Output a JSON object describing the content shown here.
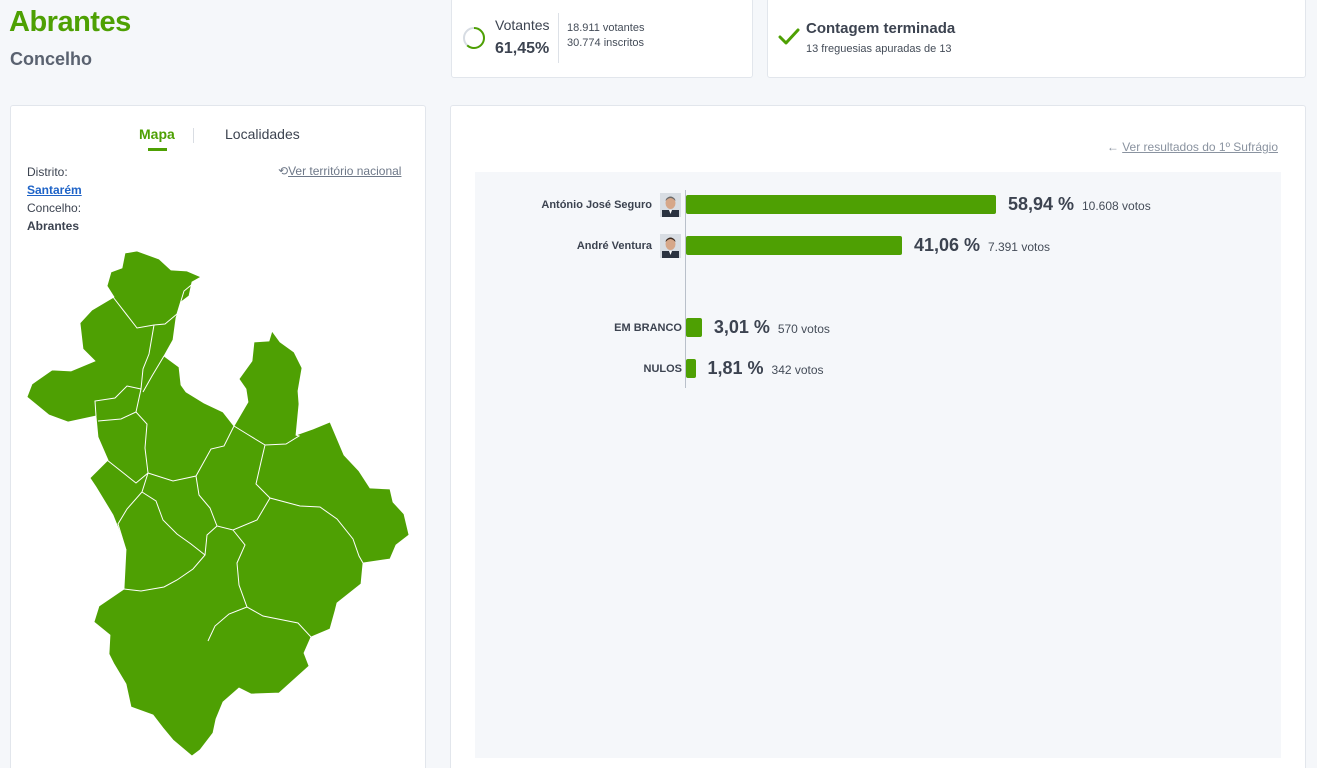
{
  "header": {
    "title": "Abrantes",
    "subtitle": "Concelho"
  },
  "turnout": {
    "label": "Votantes",
    "percent": "61,45%",
    "percent_value": 61.45,
    "voters": "18.911 votantes",
    "registered": "30.774 inscritos"
  },
  "count_status": {
    "title": "Contagem terminada",
    "subtitle": "13 freguesias apuradas de 13"
  },
  "map_panel": {
    "tabs": [
      {
        "label": "Mapa",
        "active": true
      },
      {
        "label": "Localidades",
        "active": false
      }
    ],
    "district_label": "Distrito:",
    "district_value": "Santarém",
    "municipality_label": "Concelho:",
    "municipality_value": "Abrantes",
    "national_link": "Ver território nacional",
    "map_color": "#4ea003"
  },
  "results_panel": {
    "first_round_link": "Ver resultados do 1º Sufrágio",
    "bar_color": "#4ea003"
  },
  "chart_data": {
    "type": "bar",
    "orientation": "horizontal",
    "categories": [
      "António José Seguro",
      "André Ventura",
      "EM BRANCO",
      "NULOS"
    ],
    "values": [
      58.94,
      41.06,
      3.01,
      1.81
    ],
    "value_labels": [
      "58,94 %",
      "41,06 %",
      "3,01 %",
      "1,81 %"
    ],
    "votes": [
      "10.608 votos",
      "7.391 votos",
      "570 votos",
      "342 votos"
    ],
    "has_avatar": [
      true,
      true,
      false,
      false
    ],
    "xlim": [
      0,
      100
    ],
    "grid": false,
    "legend": "none"
  }
}
